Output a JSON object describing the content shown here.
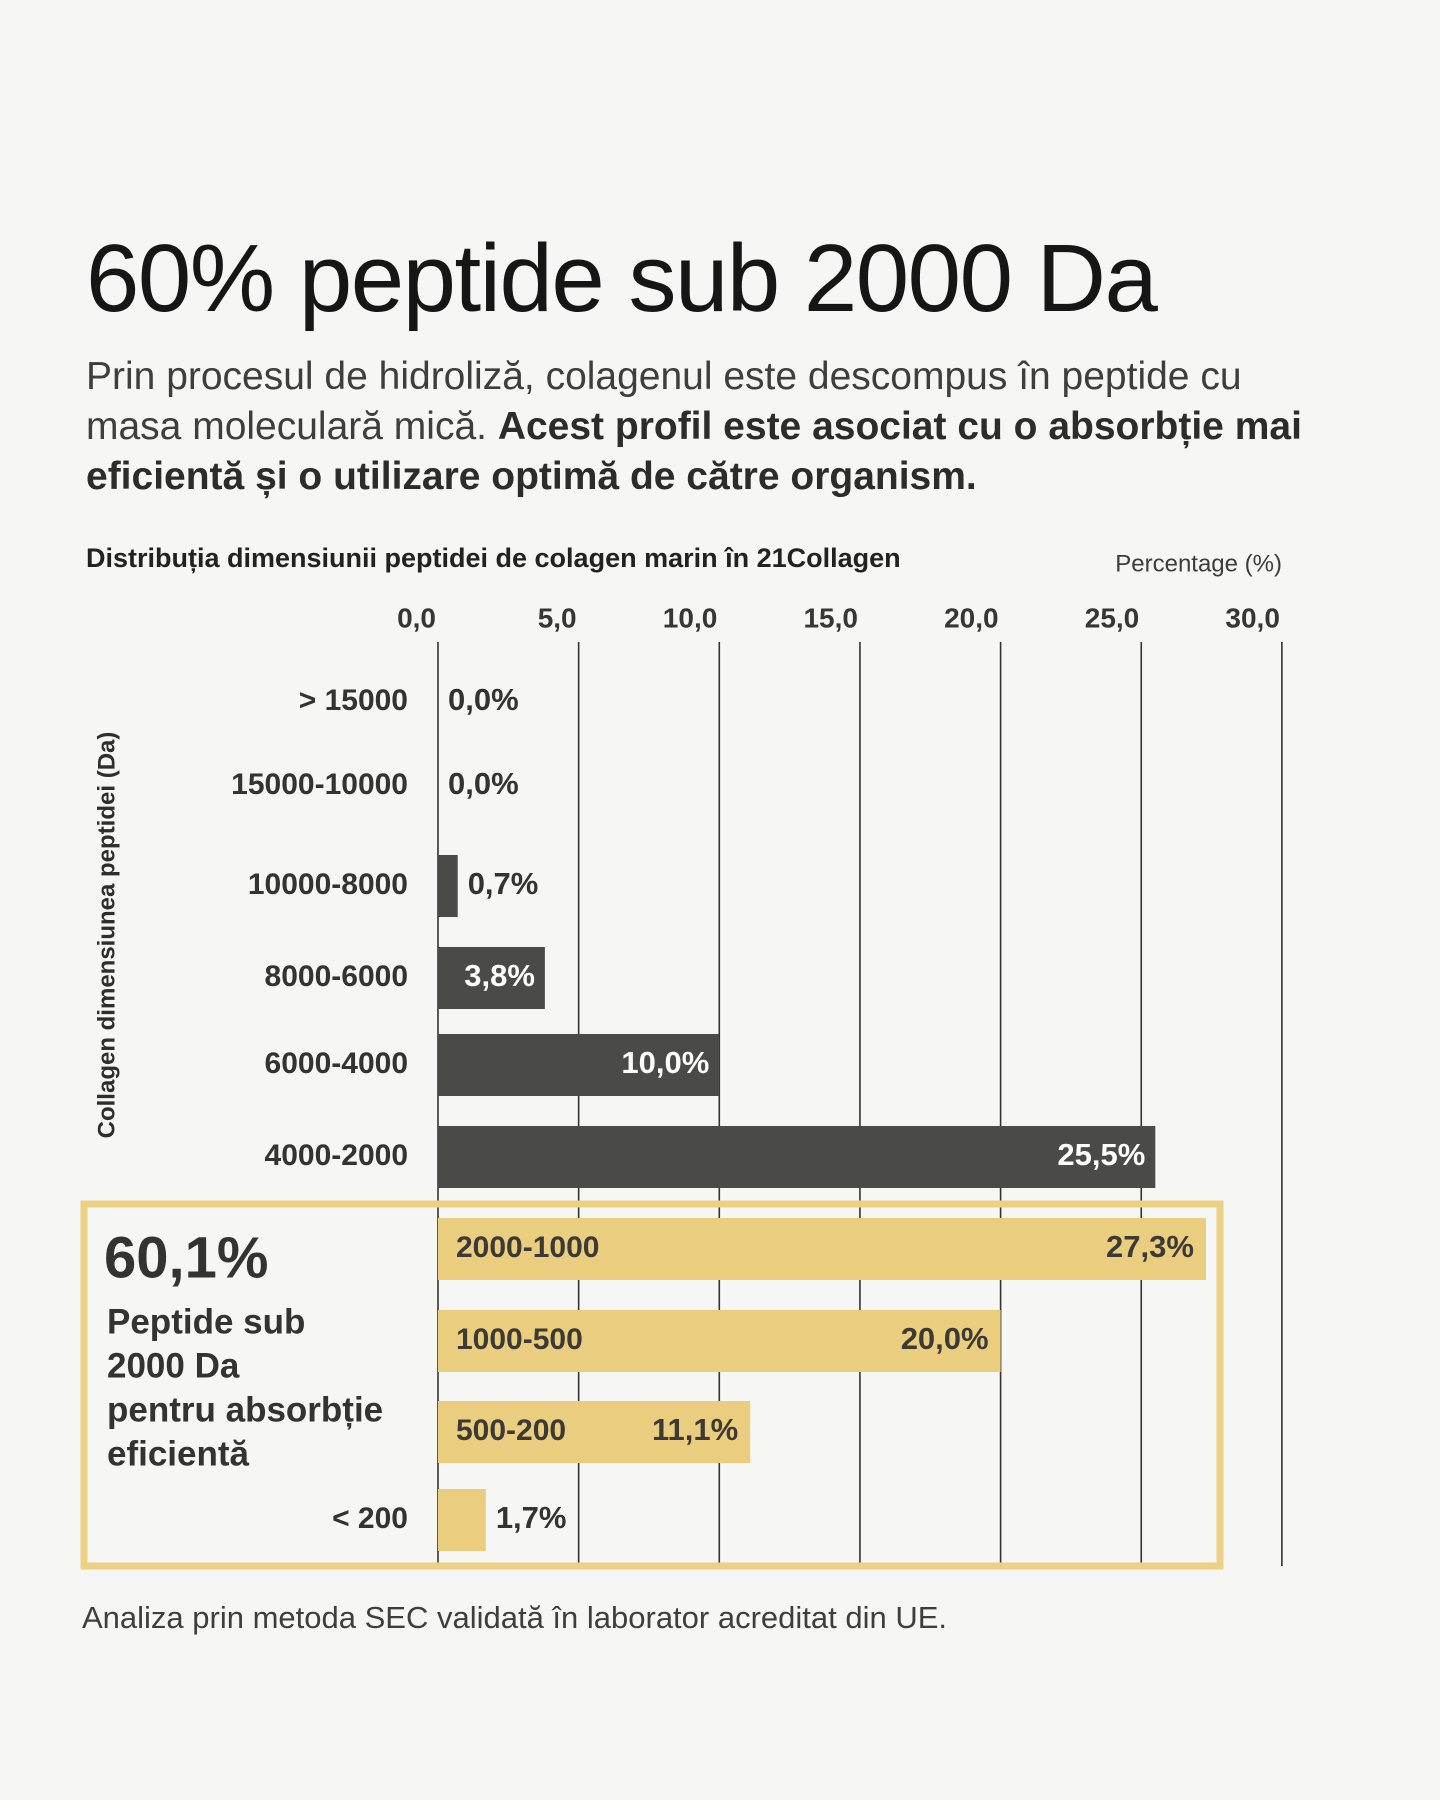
{
  "headline": "60% peptide sub 2000 Da",
  "intro": {
    "regular": "Prin procesul de hidroliză, colagenul este descompus în peptide cu masa moleculară mică. ",
    "bold": "Acest profil este asociat cu o absorbție mai eficientă și o utilizare optimă de către organism."
  },
  "chart_data": {
    "type": "bar",
    "orientation": "horizontal",
    "title": "Distribuția dimensiunii peptidei de colagen marin în 21Collagen",
    "xlabel": "Percentage (%)",
    "ylabel": "Collagen dimensiunea peptidei (Da)",
    "xlim": [
      0,
      30
    ],
    "xticks": [
      "0,0",
      "5,0",
      "10,0",
      "15,0",
      "20,0",
      "25,0",
      "30,0"
    ],
    "xtick_values": [
      0,
      5,
      10,
      15,
      20,
      25,
      30
    ],
    "grid": true,
    "categories": [
      "> 15000",
      "15000-10000",
      "10000-8000",
      "8000-6000",
      "6000-4000",
      "4000-2000",
      "2000-1000",
      "1000-500",
      "500-200",
      "< 200"
    ],
    "values": [
      0.0,
      0.0,
      0.7,
      3.8,
      10.0,
      25.5,
      27.3,
      20.0,
      11.1,
      1.7
    ],
    "value_labels": [
      "0,0%",
      "0,0%",
      "0,7%",
      "3,8%",
      "10,0%",
      "25,5%",
      "27,3%",
      "20,0%",
      "11,1%",
      "1,7%"
    ],
    "highlighted": [
      false,
      false,
      false,
      false,
      false,
      false,
      true,
      true,
      true,
      true
    ],
    "colors": {
      "dark": "#4a4a47",
      "highlight": "#ebcd80",
      "highlight_border": "#ecd184",
      "grid": "#333331"
    },
    "annotation": {
      "value": "60,1%",
      "text": [
        "Peptide sub",
        "2000 Da",
        "pentru absorbție",
        "eficientă"
      ]
    }
  },
  "footnote": "Analiza prin metoda SEC validată în laborator acreditat din UE."
}
